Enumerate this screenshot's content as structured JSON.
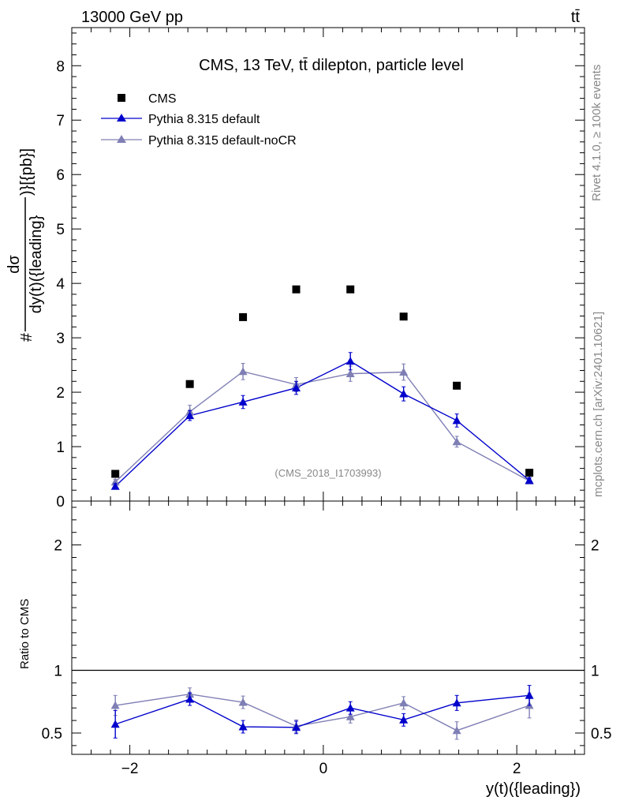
{
  "header": {
    "left_label": "13000 GeV pp",
    "right_label": "tt̄"
  },
  "side": {
    "rivet": "Rivet 4.1.0, ≥ 100k events",
    "mcplots": "mcplots.cern.ch [arXiv:2401.10621]"
  },
  "chart_data": {
    "type": "scatter",
    "title": "CMS, 13 TeV, tt̄ dilepton, particle level",
    "analysis_id": "(CMS_2018_I1703993)",
    "xlabel": "y(t)({leading})",
    "ylabel_main": {
      "prefix": "#",
      "numerator": "dσ",
      "denominator": "dy(t)({leading}",
      "suffix": ")}[{pb}]"
    },
    "ylabel_ratio": "Ratio to CMS",
    "xlim": [
      -2.6,
      2.7
    ],
    "ylim_main": [
      0,
      8.7
    ],
    "ylim_ratio": [
      0.33,
      2.35
    ],
    "x_ticks": [
      -2,
      0,
      2
    ],
    "y_ticks_main": [
      0,
      1,
      2,
      3,
      4,
      5,
      6,
      7,
      8
    ],
    "y_ticks_ratio": [
      0.5,
      1,
      2
    ],
    "x": [
      -2.15,
      -1.38,
      -0.83,
      -0.28,
      0.28,
      0.83,
      1.38,
      2.13
    ],
    "series": [
      {
        "name": "CMS",
        "marker": "square",
        "color": "#000000",
        "values": [
          0.5,
          2.15,
          3.38,
          3.89,
          3.89,
          3.39,
          2.12,
          0.52
        ]
      },
      {
        "name": "Pythia 8.315 default",
        "marker": "triangle",
        "color": "#0000cc",
        "values": [
          0.27,
          1.57,
          1.82,
          2.08,
          2.57,
          1.97,
          1.48,
          0.38
        ],
        "errors": [
          0.05,
          0.09,
          0.12,
          0.12,
          0.16,
          0.13,
          0.12,
          0.05
        ],
        "ratio": [
          0.57,
          0.77,
          0.55,
          0.545,
          0.7,
          0.605,
          0.74,
          0.8
        ],
        "ratio_errors": [
          0.11,
          0.05,
          0.05,
          0.05,
          0.05,
          0.05,
          0.06,
          0.08
        ]
      },
      {
        "name": "Pythia 8.315 default-noCR",
        "marker": "triangle",
        "color": "#7f7fb5",
        "values": [
          0.35,
          1.64,
          2.38,
          2.14,
          2.34,
          2.37,
          1.09,
          0.37
        ],
        "errors": [
          0.05,
          0.12,
          0.15,
          0.13,
          0.14,
          0.15,
          0.1,
          0.05
        ],
        "ratio": [
          0.72,
          0.81,
          0.745,
          0.555,
          0.63,
          0.74,
          0.52,
          0.72
        ],
        "ratio_errors": [
          0.08,
          0.05,
          0.05,
          0.05,
          0.05,
          0.05,
          0.07,
          0.1
        ]
      }
    ]
  }
}
